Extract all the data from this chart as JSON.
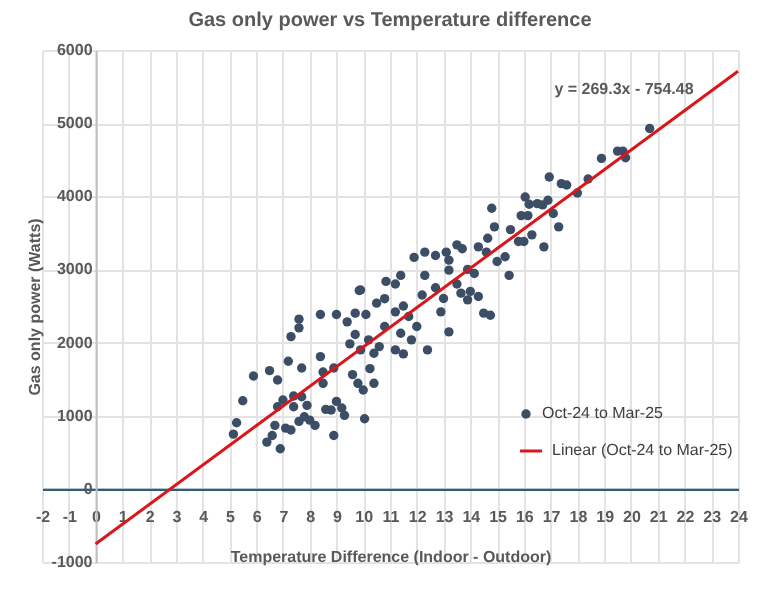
{
  "chart_data": {
    "type": "scatter",
    "title": "Gas only power vs Temperature difference",
    "xlabel": "Temperature Difference (Indoor  - Outdoor)",
    "ylabel": "Gas only power (Watts)",
    "xlim": [
      -2,
      24
    ],
    "xticks": [
      -2,
      -1,
      0,
      1,
      2,
      3,
      4,
      5,
      6,
      7,
      8,
      9,
      10,
      11,
      12,
      13,
      14,
      15,
      16,
      17,
      18,
      19,
      20,
      21,
      22,
      23,
      24
    ],
    "ylim": [
      -1000,
      6000
    ],
    "yticks": [
      -1000,
      0,
      1000,
      2000,
      3000,
      4000,
      5000,
      6000
    ],
    "grid": true,
    "legend": "bottom right",
    "annotations": [
      "y = 269.3x - 754.48"
    ],
    "series": [
      {
        "name": "Oct-24 to Mar-25",
        "marker": "circle",
        "color": "#3b4e66",
        "x": [
          5.15,
          5.27,
          5.5,
          5.9,
          6.4,
          6.5,
          6.6,
          6.7,
          6.8,
          6.8,
          6.9,
          7.0,
          7.1,
          7.2,
          7.3,
          7.3,
          7.4,
          7.4,
          7.6,
          7.6,
          7.6,
          7.7,
          7.7,
          7.8,
          7.9,
          8.0,
          8.2,
          8.4,
          8.4,
          8.5,
          8.5,
          8.6,
          8.8,
          8.9,
          8.9,
          9.0,
          9.0,
          9.2,
          9.3,
          9.4,
          9.5,
          9.6,
          9.7,
          9.7,
          9.8,
          9.85,
          9.9,
          10.0,
          10.05,
          10.1,
          10.2,
          10.25,
          10.4,
          10.4,
          10.5,
          10.6,
          10.8,
          11.2,
          11.2,
          11.4,
          11.5,
          11.7,
          11.8,
          12.0,
          12.4,
          12.9,
          13.0,
          13.2,
          13.65,
          13.9,
          14.3,
          14.5,
          14.75,
          9.9,
          10.85,
          11.2,
          11.4,
          11.9,
          12.3,
          12.3,
          12.7,
          13.1,
          13.2,
          13.2,
          13.5,
          13.7,
          13.9,
          14.15,
          14.3,
          14.6,
          14.65,
          14.8,
          14.9,
          15.0,
          15.3,
          15.45,
          15.5,
          15.8,
          15.9,
          16.0,
          16.05,
          16.15,
          16.2,
          16.3,
          16.5,
          16.7,
          16.75,
          16.9,
          16.95,
          17.1,
          17.3,
          17.4,
          17.6,
          18.0,
          18.4,
          18.9,
          19.5,
          19.7,
          19.8,
          20.7,
          10.8,
          11.5,
          12.2,
          12.7,
          13.5,
          14.0
        ],
        "values": [
          749,
          904,
          1205,
          1543,
          639,
          1616,
          730,
          868,
          1123,
          1488,
          548,
          1215,
          831,
          1744,
          804,
          2082,
          1123,
          1269,
          2320,
          2201,
          922,
          1653,
          1260,
          986,
          1142,
          940,
          868,
          2384,
          1808,
          1443,
          1598,
          1087,
          1078,
          730,
          1653,
          2384,
          1196,
          1105,
          1005,
          2283,
          1982,
          1562,
          2402,
          2110,
          1443,
          2712,
          1900,
          1352,
          959,
          2384,
          2037,
          1644,
          1443,
          1854,
          2539,
          1945,
          2219,
          1900,
          2420,
          2128,
          1845,
          2356,
          2037,
          2219,
          1900,
          2420,
          2603,
          2146,
          2676,
          2584,
          2630,
          2402,
          2374,
          2718,
          2836,
          2800,
          2918,
          3164,
          3236,
          2918,
          3191,
          3236,
          3127,
          2990,
          3336,
          3282,
          3000,
          2945,
          3309,
          3236,
          3427,
          3836,
          3582,
          3109,
          3173,
          2918,
          3545,
          3382,
          3736,
          3382,
          3991,
          3736,
          3891,
          3473,
          3900,
          3882,
          3309,
          3945,
          4264,
          3764,
          3582,
          4173,
          4155,
          4045,
          4236,
          4518,
          4618,
          4618,
          4527,
          4927,
          2600,
          2500,
          2650,
          2750,
          2800,
          2700
        ]
      },
      {
        "name": "Linear (Oct-24 to Mar-25)",
        "type": "line",
        "color": "#d9161b",
        "x": [
          0,
          24
        ],
        "marker": "none",
        "values": [
          -754,
          5709
        ]
      }
    ]
  }
}
